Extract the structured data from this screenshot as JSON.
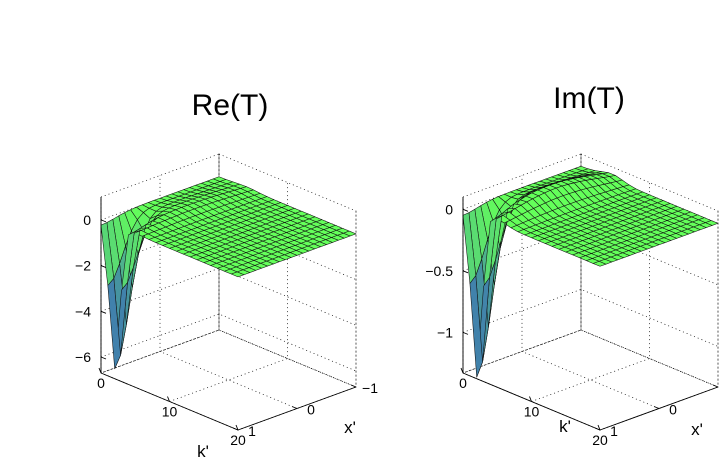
{
  "chart_data": [
    {
      "type": "surface",
      "title": "Re(T)",
      "xlabel": "k'",
      "ylabel": "x'",
      "zlabel": "",
      "x_ticks": [
        "0",
        "10",
        "20"
      ],
      "y_ticks": [
        "1",
        "0",
        "−1"
      ],
      "z_ticks": [
        "0",
        "−2",
        "−4",
        "−6"
      ],
      "x_range": [
        0,
        20
      ],
      "y_range": [
        -1,
        1
      ],
      "z_range": [
        -6.7,
        1.0
      ],
      "z_tick_values": [
        0,
        -2,
        -4,
        -6
      ],
      "grid": true,
      "surface": {
        "k_max": 20,
        "k_steps": 20,
        "x_steps": 20,
        "dip_min": -6.3,
        "dip_center_k": 2.0,
        "dip_center_x": 1.0,
        "ridge_height": 0.2,
        "ridge_k": 4.0
      }
    },
    {
      "type": "surface",
      "title": "Im(T)",
      "xlabel": "k'",
      "ylabel": "x'",
      "zlabel": "",
      "x_ticks": [
        "0",
        "10",
        "20"
      ],
      "y_ticks": [
        "1",
        "0",
        "−1"
      ],
      "z_ticks": [
        "0",
        "−0.5",
        "−1"
      ],
      "x_range": [
        0,
        20
      ],
      "y_range": [
        -1,
        1
      ],
      "z_range": [
        -1.33,
        0.1
      ],
      "z_tick_values": [
        0,
        -0.5,
        -1
      ],
      "grid": true,
      "surface": {
        "k_max": 20,
        "k_steps": 20,
        "x_steps": 20,
        "dip_min": -1.33,
        "dip_center_k": 2.0,
        "dip_center_x": 1.0,
        "ridge_height": 0.12,
        "ridge_k": 4.5
      }
    }
  ]
}
